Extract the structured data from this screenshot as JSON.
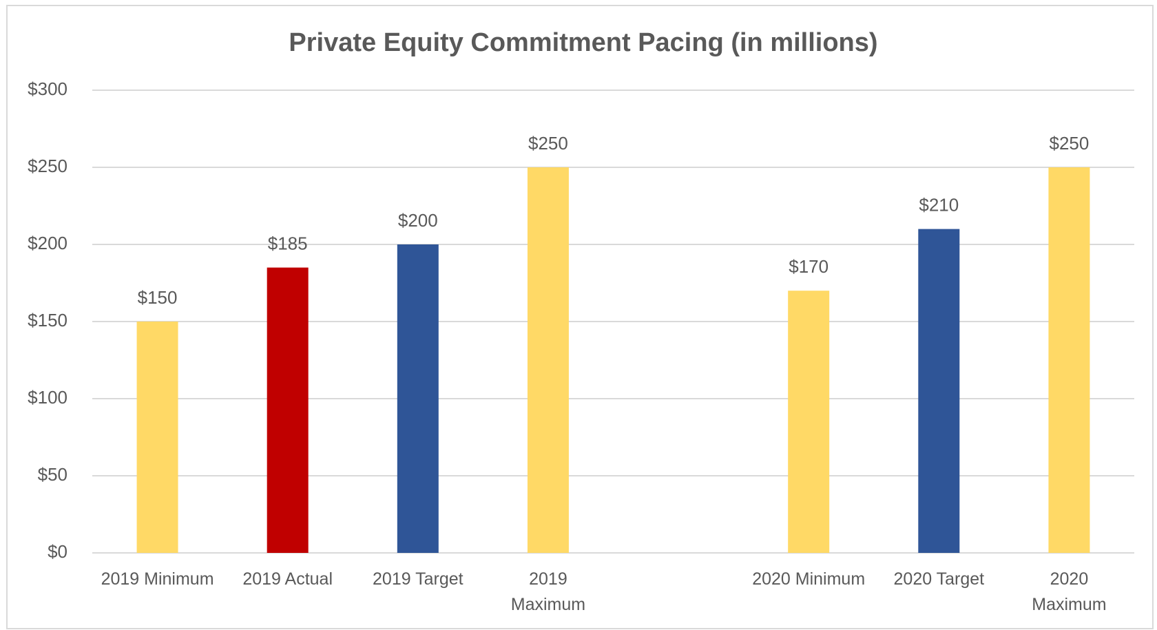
{
  "chart_data": {
    "type": "bar",
    "title": "Private Equity Commitment Pacing (in millions)",
    "categories": [
      "2019 Minimum",
      "2019 Actual",
      "2019 Target",
      "2019 Maximum",
      null,
      "2020 Minimum",
      "2020 Target",
      "2020 Maximum"
    ],
    "values": [
      150,
      185,
      200,
      250,
      null,
      170,
      210,
      250
    ],
    "value_labels": [
      "$150",
      "$185",
      "$200",
      "$250",
      null,
      "$170",
      "$210",
      "$250"
    ],
    "colors": [
      "#FFD966",
      "#C00000",
      "#2F5597",
      "#FFD966",
      null,
      "#FFD966",
      "#2F5597",
      "#FFD966"
    ],
    "ylim": [
      0,
      300
    ],
    "yticks": [
      {
        "value": 0,
        "label": "$0"
      },
      {
        "value": 50,
        "label": "$50"
      },
      {
        "value": 100,
        "label": "$100"
      },
      {
        "value": 150,
        "label": "$150"
      },
      {
        "value": 200,
        "label": "$200"
      },
      {
        "value": 250,
        "label": "$250"
      },
      {
        "value": 300,
        "label": "$300"
      }
    ],
    "grid": true
  }
}
